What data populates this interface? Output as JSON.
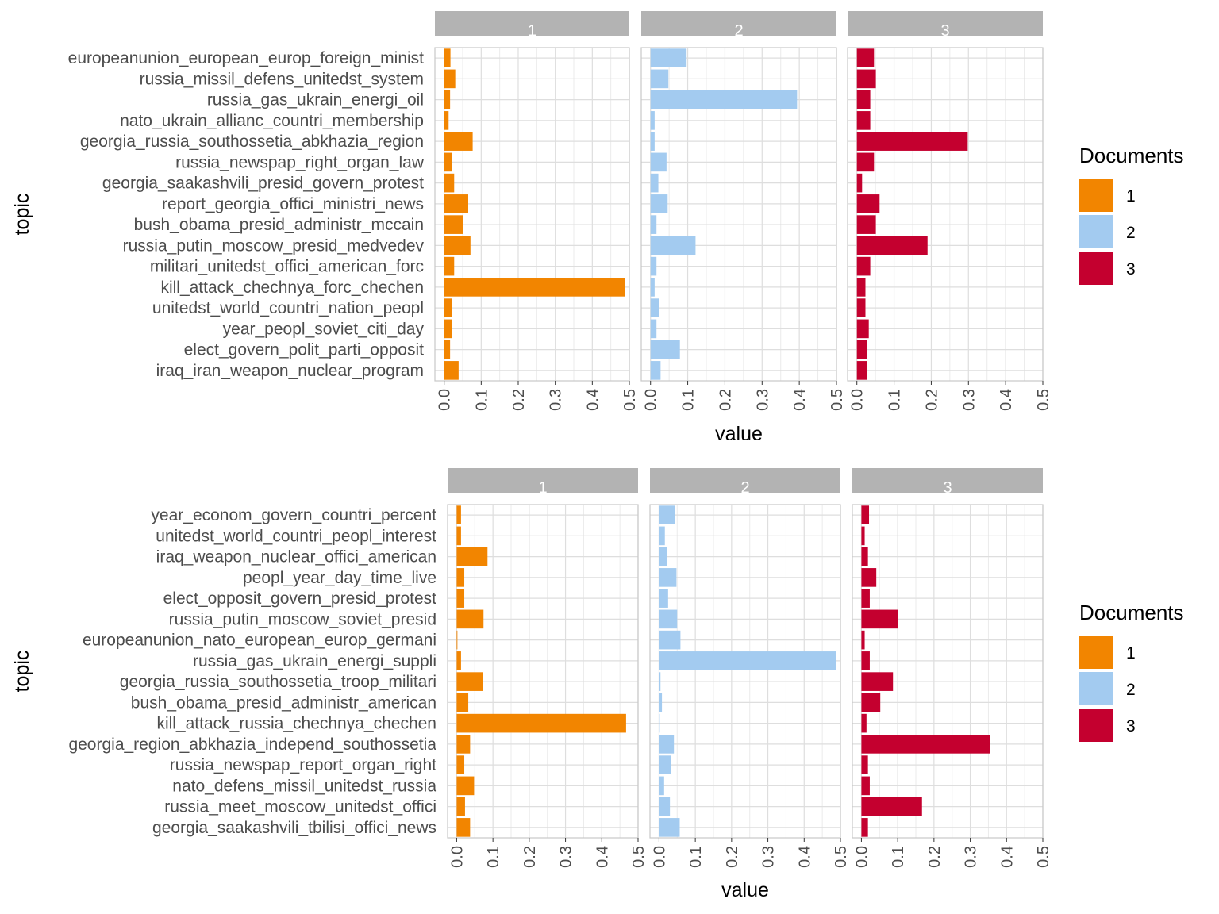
{
  "chart_data": [
    {
      "type": "bar",
      "orientation": "horizontal",
      "facets": [
        "1",
        "2",
        "3"
      ],
      "xlabel": "value",
      "ylabel": "topic",
      "xlim": [
        -0.025,
        0.5
      ],
      "xticks": [
        "0.0",
        "0.1",
        "0.2",
        "0.3",
        "0.4",
        "0.5"
      ],
      "grid": true,
      "legend": {
        "title": "Documents",
        "position": "right",
        "labels": [
          "1",
          "2",
          "3"
        ]
      },
      "colors": [
        "#F28500",
        "#A3CBF0",
        "#C4002F"
      ],
      "categories": [
        "europeanunion_european_europ_foreign_minist",
        "russia_missil_defens_unitedst_system",
        "russia_gas_ukrain_energi_oil",
        "nato_ukrain_allianc_countri_membership",
        "georgia_russia_southossetia_abkhazia_region",
        "russia_newspap_right_organ_law",
        "georgia_saakashvili_presid_govern_protest",
        "report_georgia_offici_ministri_news",
        "bush_obama_presid_administr_mccain",
        "russia_putin_moscow_presid_medvedev",
        "militari_unitedst_offici_american_forc",
        "kill_attack_chechnya_forc_chechen",
        "unitedst_world_countri_nation_peopl",
        "year_peopl_soviet_citi_day",
        "elect_govern_polit_parti_opposit",
        "iraq_iran_weapon_nuclear_program"
      ],
      "series": [
        {
          "name": "1",
          "values": [
            0.017,
            0.03,
            0.016,
            0.012,
            0.077,
            0.022,
            0.027,
            0.065,
            0.05,
            0.071,
            0.027,
            0.488,
            0.022,
            0.022,
            0.016,
            0.039
          ]
        },
        {
          "name": "2",
          "values": [
            0.097,
            0.048,
            0.394,
            0.011,
            0.011,
            0.043,
            0.021,
            0.046,
            0.016,
            0.121,
            0.016,
            0.011,
            0.024,
            0.016,
            0.079,
            0.027
          ]
        },
        {
          "name": "3",
          "values": [
            0.046,
            0.051,
            0.036,
            0.036,
            0.298,
            0.046,
            0.014,
            0.061,
            0.051,
            0.19,
            0.036,
            0.023,
            0.023,
            0.032,
            0.027,
            0.027
          ]
        }
      ]
    },
    {
      "type": "bar",
      "orientation": "horizontal",
      "facets": [
        "1",
        "2",
        "3"
      ],
      "xlabel": "value",
      "ylabel": "topic",
      "xlim": [
        -0.025,
        0.5
      ],
      "xticks": [
        "0.0",
        "0.1",
        "0.2",
        "0.3",
        "0.4",
        "0.5"
      ],
      "grid": true,
      "legend": {
        "title": "Documents",
        "position": "right",
        "labels": [
          "1",
          "2",
          "3"
        ]
      },
      "colors": [
        "#F28500",
        "#A3CBF0",
        "#C4002F"
      ],
      "categories": [
        "year_econom_govern_countri_percent",
        "unitedst_world_countri_peopl_interest",
        "iraq_weapon_nuclear_offici_american",
        "peopl_year_day_time_live",
        "elect_opposit_govern_presid_protest",
        "russia_putin_moscow_soviet_presid",
        "europeanunion_nato_european_europ_germani",
        "russia_gas_ukrain_energi_suppli",
        "georgia_russia_southossetia_troop_militari",
        "bush_obama_presid_administr_american",
        "kill_attack_russia_chechnya_chechen",
        "georgia_region_abkhazia_independ_southossetia",
        "russia_newspap_report_organ_right",
        "nato_defens_missil_unitedst_russia",
        "russia_meet_moscow_unitedst_offici",
        "georgia_saakashvili_tbilisi_offici_news"
      ],
      "series": [
        {
          "name": "1",
          "values": [
            0.012,
            0.012,
            0.085,
            0.021,
            0.021,
            0.074,
            0.002,
            0.012,
            0.072,
            0.032,
            0.467,
            0.037,
            0.021,
            0.048,
            0.023,
            0.037
          ]
        },
        {
          "name": "2",
          "values": [
            0.043,
            0.016,
            0.023,
            0.048,
            0.025,
            0.05,
            0.059,
            0.489,
            0.004,
            0.008,
            0.002,
            0.041,
            0.034,
            0.014,
            0.03,
            0.057
          ]
        },
        {
          "name": "3",
          "values": [
            0.021,
            0.009,
            0.018,
            0.041,
            0.023,
            0.1,
            0.009,
            0.023,
            0.087,
            0.052,
            0.014,
            0.355,
            0.018,
            0.023,
            0.167,
            0.018
          ]
        }
      ]
    }
  ]
}
